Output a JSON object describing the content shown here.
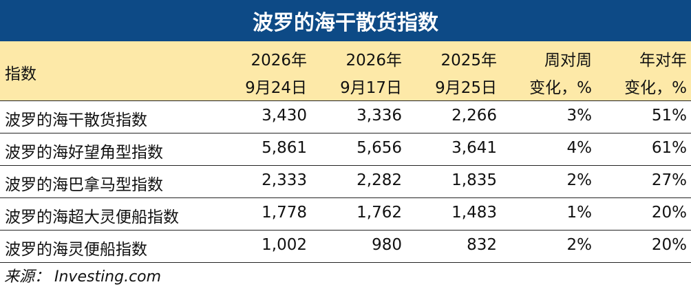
{
  "title": "波罗的海干散货指数",
  "header": {
    "label": "指数",
    "columns": [
      {
        "line1": "2026年",
        "line2": "9月24日"
      },
      {
        "line1": "2026年",
        "line2": "9月17日"
      },
      {
        "line1": "2025年",
        "line2": "9月25日"
      },
      {
        "line1": "周对周",
        "line2": "变化，%"
      },
      {
        "line1": "年对年",
        "line2": "变化，%"
      }
    ]
  },
  "rows": [
    {
      "name": "波罗的海干散货指数",
      "v1": "3,430",
      "v2": "3,336",
      "v3": "2,266",
      "wow": "3%",
      "yoy": "51%"
    },
    {
      "name": "波罗的海好望角型指数",
      "v1": "5,861",
      "v2": "5,656",
      "v3": "3,641",
      "wow": "4%",
      "yoy": "61%"
    },
    {
      "name": "波罗的海巴拿马型指数",
      "v1": "2,333",
      "v2": "2,282",
      "v3": "1,835",
      "wow": "2%",
      "yoy": "27%"
    },
    {
      "name": "波罗的海超大灵便船指数",
      "v1": "1,778",
      "v2": "1,762",
      "v3": "1,483",
      "wow": "1%",
      "yoy": "20%"
    },
    {
      "name": "波罗的海灵便船指数",
      "v1": "1,002",
      "v2": "980",
      "v3": "832",
      "wow": "2%",
      "yoy": "20%"
    }
  ],
  "source": "来源： Investing.com",
  "chart_data": {
    "type": "table",
    "title": "波罗的海干散货指数",
    "columns": [
      "指数",
      "2026年9月24日",
      "2026年9月17日",
      "2025年9月25日",
      "周对周变化，%",
      "年对年变化，%"
    ],
    "rows": [
      [
        "波罗的海干散货指数",
        3430,
        3336,
        2266,
        3,
        51
      ],
      [
        "波罗的海好望角型指数",
        5861,
        5656,
        3641,
        4,
        61
      ],
      [
        "波罗的海巴拿马型指数",
        2333,
        2282,
        1835,
        2,
        27
      ],
      [
        "波罗的海超大灵便船指数",
        1778,
        1762,
        1483,
        1,
        20
      ],
      [
        "波罗的海灵便船指数",
        1002,
        980,
        832,
        2,
        20
      ]
    ]
  }
}
